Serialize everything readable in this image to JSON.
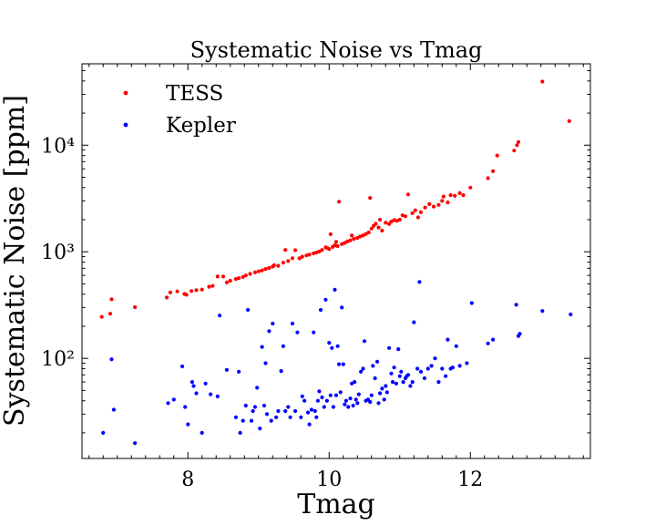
{
  "chart_data": {
    "type": "scatter",
    "title": "Systematic Noise vs Tmag",
    "xlabel": "Tmag",
    "ylabel": "Systematic Noise [ppm]",
    "xscale": "linear",
    "yscale": "log",
    "xlim": [
      6.5,
      13.7
    ],
    "ylim": [
      11.5,
      58000
    ],
    "xticks": [
      8,
      10,
      12
    ],
    "xtick_labels": [
      "8",
      "10",
      "12"
    ],
    "yticks": [
      100,
      1000,
      10000
    ],
    "ytick_labels": [
      "10²",
      "10³",
      "10⁴"
    ],
    "legend_position": "upper-left",
    "series": [
      {
        "name": "TESS",
        "color": "#ff0000",
        "points": [
          [
            6.78,
            245
          ],
          [
            6.9,
            262
          ],
          [
            6.92,
            358
          ],
          [
            7.25,
            302
          ],
          [
            7.7,
            372
          ],
          [
            7.75,
            415
          ],
          [
            7.85,
            425
          ],
          [
            7.95,
            402
          ],
          [
            7.98,
            395
          ],
          [
            8.05,
            428
          ],
          [
            8.12,
            436
          ],
          [
            8.2,
            442
          ],
          [
            8.3,
            470
          ],
          [
            8.35,
            478
          ],
          [
            8.42,
            585
          ],
          [
            8.5,
            585
          ],
          [
            8.55,
            515
          ],
          [
            8.6,
            535
          ],
          [
            8.68,
            555
          ],
          [
            8.72,
            565
          ],
          [
            8.78,
            580
          ],
          [
            8.82,
            600
          ],
          [
            8.88,
            620
          ],
          [
            8.95,
            640
          ],
          [
            9.0,
            655
          ],
          [
            9.05,
            670
          ],
          [
            9.1,
            690
          ],
          [
            9.15,
            705
          ],
          [
            9.2,
            725
          ],
          [
            9.22,
            748
          ],
          [
            9.28,
            738
          ],
          [
            9.35,
            790
          ],
          [
            9.38,
            1040
          ],
          [
            9.42,
            818
          ],
          [
            9.48,
            870
          ],
          [
            9.52,
            1035
          ],
          [
            9.58,
            868
          ],
          [
            9.62,
            900
          ],
          [
            9.68,
            925
          ],
          [
            9.72,
            940
          ],
          [
            9.78,
            965
          ],
          [
            9.82,
            985
          ],
          [
            9.86,
            1005
          ],
          [
            9.9,
            1040
          ],
          [
            9.95,
            1100
          ],
          [
            9.98,
            1080
          ],
          [
            10.0,
            1060
          ],
          [
            10.02,
            1460
          ],
          [
            10.05,
            1110
          ],
          [
            10.08,
            1150
          ],
          [
            10.1,
            1240
          ],
          [
            10.12,
            1130
          ],
          [
            10.14,
            2950
          ],
          [
            10.18,
            1180
          ],
          [
            10.22,
            1210
          ],
          [
            10.26,
            1250
          ],
          [
            10.3,
            1280
          ],
          [
            10.32,
            1420
          ],
          [
            10.35,
            1320
          ],
          [
            10.4,
            1350
          ],
          [
            10.44,
            1390
          ],
          [
            10.48,
            1420
          ],
          [
            10.52,
            1470
          ],
          [
            10.56,
            1520
          ],
          [
            10.58,
            3200
          ],
          [
            10.6,
            1650
          ],
          [
            10.63,
            1750
          ],
          [
            10.66,
            1830
          ],
          [
            10.7,
            1690
          ],
          [
            10.72,
            2000
          ],
          [
            10.75,
            1580
          ],
          [
            10.8,
            1870
          ],
          [
            10.85,
            1820
          ],
          [
            10.88,
            1920
          ],
          [
            10.92,
            1980
          ],
          [
            10.96,
            1950
          ],
          [
            11.0,
            2000
          ],
          [
            11.04,
            2200
          ],
          [
            11.08,
            2150
          ],
          [
            11.12,
            3450
          ],
          [
            11.18,
            2300
          ],
          [
            11.22,
            2450
          ],
          [
            11.26,
            2100
          ],
          [
            11.3,
            2350
          ],
          [
            11.36,
            2600
          ],
          [
            11.42,
            2800
          ],
          [
            11.48,
            2650
          ],
          [
            11.55,
            2750
          ],
          [
            11.6,
            3000
          ],
          [
            11.62,
            3300
          ],
          [
            11.68,
            2900
          ],
          [
            11.72,
            3400
          ],
          [
            11.78,
            3350
          ],
          [
            11.85,
            3550
          ],
          [
            11.9,
            3400
          ],
          [
            12.0,
            4000
          ],
          [
            12.25,
            4900
          ],
          [
            12.32,
            5700
          ],
          [
            12.38,
            8000
          ],
          [
            12.62,
            8900
          ],
          [
            12.66,
            10000
          ],
          [
            12.68,
            10700
          ],
          [
            13.02,
            39500
          ],
          [
            13.4,
            16800
          ]
        ]
      },
      {
        "name": "Kepler",
        "color": "#0000ff",
        "points": [
          [
            6.8,
            20
          ],
          [
            6.92,
            98
          ],
          [
            6.95,
            33
          ],
          [
            7.25,
            16
          ],
          [
            7.72,
            38
          ],
          [
            7.8,
            41
          ],
          [
            7.92,
            84
          ],
          [
            7.96,
            35
          ],
          [
            8.0,
            24
          ],
          [
            8.06,
            60
          ],
          [
            8.08,
            55
          ],
          [
            8.12,
            47
          ],
          [
            8.2,
            20
          ],
          [
            8.25,
            58
          ],
          [
            8.32,
            46
          ],
          [
            8.42,
            44
          ],
          [
            8.45,
            252
          ],
          [
            8.55,
            78
          ],
          [
            8.68,
            28
          ],
          [
            8.72,
            75
          ],
          [
            8.74,
            20
          ],
          [
            8.78,
            26
          ],
          [
            8.82,
            36
          ],
          [
            8.85,
            285
          ],
          [
            8.9,
            26
          ],
          [
            8.92,
            32
          ],
          [
            8.95,
            35
          ],
          [
            8.98,
            53
          ],
          [
            9.02,
            22
          ],
          [
            9.05,
            128
          ],
          [
            9.08,
            36
          ],
          [
            9.1,
            90
          ],
          [
            9.12,
            30
          ],
          [
            9.15,
            180
          ],
          [
            9.18,
            26
          ],
          [
            9.2,
            212
          ],
          [
            9.25,
            28
          ],
          [
            9.28,
            32
          ],
          [
            9.32,
            76
          ],
          [
            9.35,
            130
          ],
          [
            9.38,
            32
          ],
          [
            9.42,
            35
          ],
          [
            9.45,
            28
          ],
          [
            9.48,
            212
          ],
          [
            9.52,
            32
          ],
          [
            9.55,
            175
          ],
          [
            9.6,
            28
          ],
          [
            9.62,
            44
          ],
          [
            9.65,
            40
          ],
          [
            9.7,
            31
          ],
          [
            9.72,
            24
          ],
          [
            9.75,
            33
          ],
          [
            9.78,
            175
          ],
          [
            9.8,
            32
          ],
          [
            9.82,
            28
          ],
          [
            9.84,
            40
          ],
          [
            9.86,
            49
          ],
          [
            9.88,
            285
          ],
          [
            9.9,
            43
          ],
          [
            9.93,
            35
          ],
          [
            9.95,
            355
          ],
          [
            9.97,
            40
          ],
          [
            10.0,
            140
          ],
          [
            10.02,
            45
          ],
          [
            10.04,
            125
          ],
          [
            10.06,
            35
          ],
          [
            10.08,
            440
          ],
          [
            10.1,
            45
          ],
          [
            10.12,
            130
          ],
          [
            10.14,
            88
          ],
          [
            10.16,
            48
          ],
          [
            10.18,
            300
          ],
          [
            10.2,
            88
          ],
          [
            10.22,
            37
          ],
          [
            10.24,
            40
          ],
          [
            10.27,
            35
          ],
          [
            10.3,
            42
          ],
          [
            10.32,
            58
          ],
          [
            10.34,
            36
          ],
          [
            10.36,
            60
          ],
          [
            10.38,
            41
          ],
          [
            10.4,
            38
          ],
          [
            10.42,
            46
          ],
          [
            10.45,
            75
          ],
          [
            10.48,
            80
          ],
          [
            10.5,
            145
          ],
          [
            10.52,
            40
          ],
          [
            10.55,
            41
          ],
          [
            10.58,
            39
          ],
          [
            10.6,
            45
          ],
          [
            10.62,
            85
          ],
          [
            10.65,
            65
          ],
          [
            10.68,
            93
          ],
          [
            10.7,
            38
          ],
          [
            10.72,
            47
          ],
          [
            10.75,
            52
          ],
          [
            10.78,
            41
          ],
          [
            10.8,
            55
          ],
          [
            10.82,
            48
          ],
          [
            10.85,
            125
          ],
          [
            10.88,
            72
          ],
          [
            10.9,
            60
          ],
          [
            10.92,
            82
          ],
          [
            10.95,
            58
          ],
          [
            10.98,
            122
          ],
          [
            11.0,
            68
          ],
          [
            11.02,
            75
          ],
          [
            11.05,
            60
          ],
          [
            11.08,
            65
          ],
          [
            11.1,
            68
          ],
          [
            11.12,
            70
          ],
          [
            11.15,
            55
          ],
          [
            11.18,
            60
          ],
          [
            11.2,
            218
          ],
          [
            11.25,
            80
          ],
          [
            11.28,
            520
          ],
          [
            11.3,
            75
          ],
          [
            11.35,
            65
          ],
          [
            11.4,
            80
          ],
          [
            11.45,
            85
          ],
          [
            11.5,
            100
          ],
          [
            11.55,
            60
          ],
          [
            11.6,
            80
          ],
          [
            11.65,
            68
          ],
          [
            11.68,
            150
          ],
          [
            11.72,
            80
          ],
          [
            11.75,
            82
          ],
          [
            11.8,
            130
          ],
          [
            11.85,
            85
          ],
          [
            11.95,
            90
          ],
          [
            12.02,
            330
          ],
          [
            12.25,
            138
          ],
          [
            12.32,
            150
          ],
          [
            12.65,
            318
          ],
          [
            12.68,
            162
          ],
          [
            12.7,
            170
          ],
          [
            13.02,
            278
          ],
          [
            13.42,
            258
          ]
        ]
      }
    ]
  }
}
